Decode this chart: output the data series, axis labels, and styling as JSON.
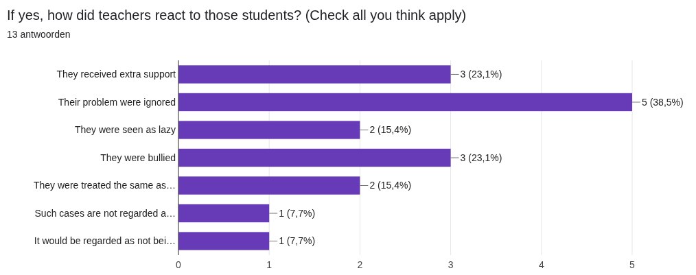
{
  "chart_data": {
    "type": "bar",
    "orientation": "horizontal",
    "title": "If yes, how did teachers react to those students? (Check all you think apply)",
    "subtitle": "13 antwoorden",
    "categories": [
      "They received extra support",
      "Their problem were ignored",
      "They were seen as lazy",
      "They were bullied",
      "They were treated the same as…",
      "Such cases are not regarded a…",
      "It would be regarded as not bei…"
    ],
    "values": [
      3,
      5,
      2,
      3,
      2,
      1,
      1
    ],
    "value_labels": [
      "3 (23,1%)",
      "5 (38,5%)",
      "2 (15,4%)",
      "3 (23,1%)",
      "2 (15,4%)",
      "1 (7,7%)",
      "1 (7,7%)"
    ],
    "color": "#673ab7",
    "xlim": [
      0,
      5
    ],
    "xticks": [
      0,
      1,
      2,
      3,
      4,
      5
    ],
    "grid": "x"
  }
}
